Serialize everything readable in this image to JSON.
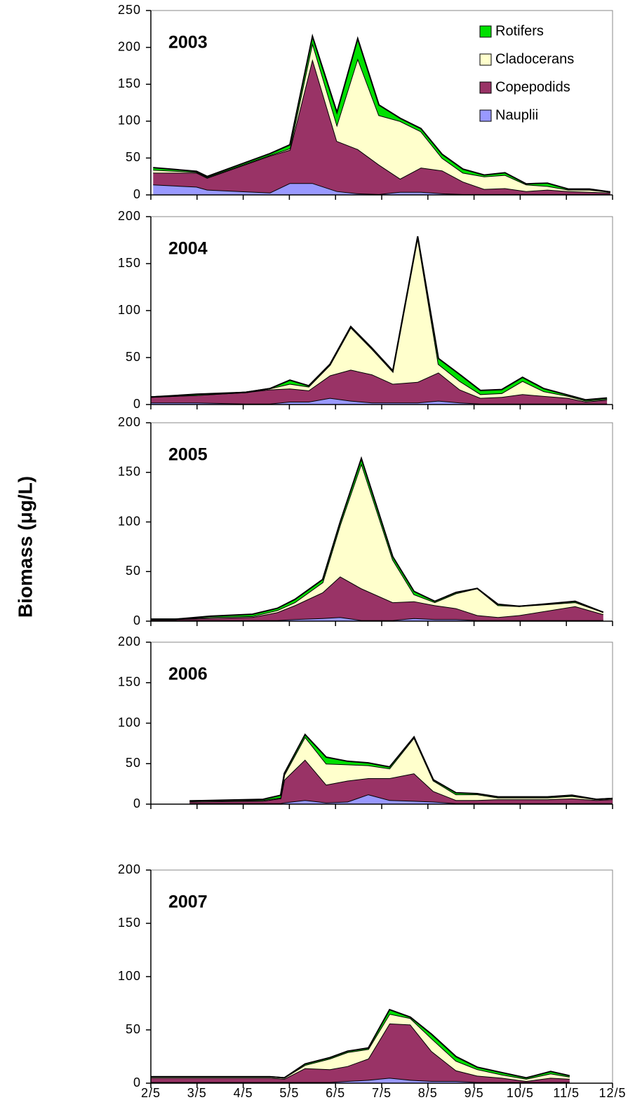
{
  "ylabel": "Biomass (μg/L)",
  "chart_data": [
    {
      "type": "area",
      "title": "2003",
      "stacked": true,
      "legend": "upper right",
      "x": [
        2.05,
        2.99,
        3.22,
        4.58,
        5.01,
        5.5,
        6.03,
        6.48,
        6.94,
        7.4,
        7.85,
        8.31,
        8.76,
        9.22,
        9.67,
        10.13,
        10.59,
        11.04,
        11.5,
        11.95
      ],
      "series": [
        {
          "name": "Nauplii",
          "color": "#9999ff",
          "values": [
            14,
            11,
            7,
            3,
            16,
            16,
            5,
            2,
            1,
            4,
            4,
            2,
            1,
            1,
            1,
            1,
            1,
            1,
            1,
            1
          ]
        },
        {
          "name": "Copepodids",
          "color": "#993366",
          "values": [
            16,
            19,
            16,
            50,
            45,
            168,
            68,
            60,
            40,
            18,
            33,
            31,
            17,
            7,
            8,
            4,
            6,
            4,
            3,
            2
          ]
        },
        {
          "name": "Cladocerans",
          "color": "#ffffcc",
          "values": [
            4,
            1,
            1,
            1,
            2,
            22,
            22,
            123,
            67,
            78,
            49,
            17,
            12,
            17,
            18,
            9,
            5,
            2,
            3,
            1
          ]
        },
        {
          "name": "Rotifers",
          "color": "#00e000",
          "values": [
            3,
            1,
            1,
            2,
            5,
            9,
            17,
            27,
            14,
            4,
            4,
            5,
            5,
            2,
            3,
            1,
            4,
            1,
            1,
            0
          ]
        }
      ],
      "xlim": [
        2,
        12
      ],
      "ylim": [
        0,
        250
      ],
      "yticks": [
        0,
        50,
        100,
        150,
        200,
        250
      ]
    },
    {
      "type": "area",
      "title": "2004",
      "stacked": true,
      "x": [
        2.0,
        2.99,
        4.05,
        4.58,
        5.01,
        5.42,
        5.88,
        6.33,
        6.79,
        7.24,
        7.78,
        8.23,
        8.69,
        9.14,
        9.6,
        10.05,
        10.51,
        11.04,
        11.42,
        11.88
      ],
      "series": [
        {
          "color": "#9999ff",
          "values": [
            2,
            2,
            1,
            1,
            3,
            3,
            7,
            4,
            2,
            2,
            2,
            4,
            2,
            1,
            1,
            1,
            1,
            1,
            1,
            1
          ]
        },
        {
          "color": "#993366",
          "values": [
            6,
            8,
            12,
            15,
            14,
            12,
            24,
            33,
            30,
            20,
            22,
            30,
            14,
            6,
            7,
            10,
            8,
            6,
            2,
            4
          ]
        },
        {
          "color": "#ffffcc",
          "values": [
            0,
            0,
            0,
            1,
            5,
            4,
            11,
            45,
            27,
            13,
            154,
            9,
            9,
            4,
            4,
            14,
            5,
            2,
            1,
            1
          ]
        },
        {
          "color": "#00e000",
          "values": [
            0,
            1,
            0,
            0,
            4,
            1,
            1,
            1,
            1,
            1,
            1,
            6,
            7,
            4,
            4,
            4,
            3,
            1,
            1,
            1
          ]
        }
      ],
      "xlim": [
        2,
        12
      ],
      "ylim": [
        0,
        200
      ],
      "yticks": [
        0,
        50,
        100,
        150,
        200
      ]
    },
    {
      "type": "area",
      "title": "2005",
      "stacked": true,
      "x": [
        2.0,
        2.53,
        3.29,
        4.2,
        4.74,
        5.12,
        5.72,
        6.1,
        6.56,
        7.24,
        7.7,
        8.15,
        8.61,
        9.07,
        9.52,
        9.98,
        11.19,
        11.8
      ],
      "series": [
        {
          "color": "#9999ff",
          "values": [
            1,
            1,
            1,
            1,
            1,
            2,
            3,
            4,
            1,
            1,
            3,
            2,
            2,
            1,
            1,
            1,
            1,
            1
          ]
        },
        {
          "color": "#993366",
          "values": [
            1,
            1,
            2,
            3,
            8,
            14,
            26,
            41,
            32,
            18,
            17,
            14,
            11,
            5,
            3,
            5,
            14,
            6
          ]
        },
        {
          "color": "#ffffcc",
          "values": [
            0,
            0,
            1,
            1,
            2,
            3,
            10,
            52,
            126,
            43,
            7,
            3,
            15,
            27,
            12,
            9,
            4,
            2
          ]
        },
        {
          "color": "#00e000",
          "values": [
            0,
            0,
            1,
            2,
            2,
            3,
            3,
            3,
            5,
            3,
            3,
            1,
            1,
            0,
            1,
            0,
            1,
            0
          ]
        }
      ],
      "xlim": [
        2,
        12
      ],
      "ylim": [
        0,
        200
      ],
      "yticks": [
        0,
        50,
        100,
        150,
        200
      ]
    },
    {
      "type": "area",
      "title": "2006",
      "stacked": true,
      "x": [
        2.84,
        4.43,
        4.81,
        4.89,
        5.34,
        5.8,
        6.26,
        6.71,
        7.17,
        7.7,
        8.12,
        8.61,
        9.07,
        9.52,
        9.98,
        10.59,
        11.12,
        11.65,
        12.0
      ],
      "series": [
        {
          "color": "#9999ff",
          "values": [
            1,
            1,
            1,
            2,
            5,
            2,
            3,
            12,
            5,
            4,
            3,
            1,
            1,
            1,
            1,
            1,
            1,
            1,
            1
          ]
        },
        {
          "color": "#993366",
          "values": [
            2,
            3,
            6,
            28,
            50,
            22,
            26,
            20,
            27,
            34,
            13,
            4,
            4,
            5,
            5,
            5,
            6,
            4,
            5
          ]
        },
        {
          "color": "#ffffcc",
          "values": [
            1,
            1,
            1,
            6,
            28,
            26,
            20,
            16,
            12,
            44,
            13,
            7,
            7,
            2,
            2,
            2,
            3,
            1,
            1
          ]
        },
        {
          "color": "#00e000",
          "values": [
            0,
            1,
            3,
            2,
            3,
            8,
            4,
            3,
            2,
            1,
            1,
            2,
            1,
            1,
            1,
            1,
            1,
            0,
            0
          ]
        }
      ],
      "xlim": [
        2,
        12
      ],
      "ylim": [
        0,
        200
      ],
      "yticks": [
        0,
        50,
        100,
        150,
        200
      ]
    },
    {
      "type": "area",
      "title": "2007",
      "stacked": true,
      "x": [
        2.0,
        2.99,
        3.98,
        4.58,
        4.89,
        5.34,
        5.88,
        6.26,
        6.71,
        7.17,
        7.62,
        8.08,
        8.61,
        9.07,
        9.6,
        10.13,
        10.66,
        11.07
      ],
      "series": [
        {
          "color": "#9999ff",
          "values": [
            1,
            1,
            1,
            1,
            1,
            1,
            1,
            2,
            3,
            5,
            3,
            2,
            2,
            1,
            1,
            1,
            1,
            1
          ]
        },
        {
          "color": "#993366",
          "values": [
            4,
            4,
            4,
            4,
            3,
            13,
            12,
            14,
            20,
            51,
            52,
            28,
            10,
            6,
            4,
            1,
            4,
            3
          ]
        },
        {
          "color": "#ffffcc",
          "values": [
            1,
            1,
            1,
            1,
            1,
            3,
            10,
            13,
            9,
            9,
            6,
            12,
            9,
            6,
            3,
            2,
            4,
            2
          ]
        },
        {
          "color": "#00e000",
          "values": [
            0,
            0,
            0,
            0,
            0,
            1,
            1,
            1,
            1,
            4,
            1,
            4,
            4,
            2,
            2,
            1,
            2,
            1
          ]
        }
      ],
      "xlim": [
        2,
        12
      ],
      "ylim": [
        0,
        200
      ],
      "yticks": [
        0,
        50,
        100,
        150,
        200
      ],
      "xticks": [
        {
          "value": 2,
          "label": "2/5"
        },
        {
          "value": 3,
          "label": "3/5"
        },
        {
          "value": 4,
          "label": "4/5"
        },
        {
          "value": 5,
          "label": "5/5"
        },
        {
          "value": 6,
          "label": "6/5"
        },
        {
          "value": 7,
          "label": "7/5"
        },
        {
          "value": 8,
          "label": "8/5"
        },
        {
          "value": 9,
          "label": "9/5"
        },
        {
          "value": 10,
          "label": "10/5"
        },
        {
          "value": 11,
          "label": "11/5"
        },
        {
          "value": 12,
          "label": "12/5"
        }
      ]
    }
  ]
}
